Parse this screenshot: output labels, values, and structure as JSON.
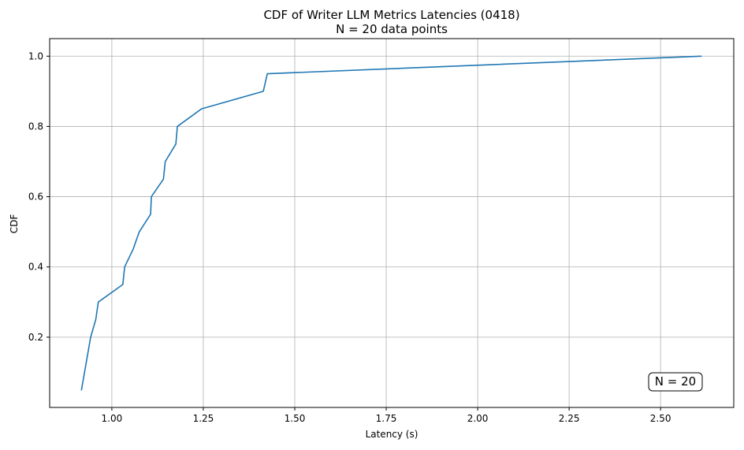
{
  "chart_data": {
    "type": "line",
    "title": "CDF of Writer LLM Metrics Latencies (0418)",
    "subtitle": "N = 20 data points",
    "xlabel": "Latency (s)",
    "ylabel": "CDF",
    "annotation": "N = 20",
    "xlim": [
      0.83,
      2.7
    ],
    "ylim": [
      0.0,
      1.05
    ],
    "xticks": [
      1.0,
      1.25,
      1.5,
      1.75,
      2.0,
      2.25,
      2.5
    ],
    "xtick_labels": [
      "1.00",
      "1.25",
      "1.50",
      "1.75",
      "2.00",
      "2.25",
      "2.50"
    ],
    "yticks": [
      0.2,
      0.4,
      0.6,
      0.8,
      1.0
    ],
    "ytick_labels": [
      "0.2",
      "0.4",
      "0.6",
      "0.8",
      "1.0"
    ],
    "grid": true,
    "legend": "none",
    "series": [
      {
        "color": "#1f77b4",
        "x": [
          0.917,
          0.942,
          0.956,
          0.963,
          1.03,
          1.035,
          1.058,
          1.075,
          1.106,
          1.108,
          1.141,
          1.146,
          1.175,
          1.179,
          1.245,
          1.414,
          1.425,
          2.611
        ],
        "y": [
          0.05,
          0.2,
          0.25,
          0.3,
          0.35,
          0.4,
          0.45,
          0.5,
          0.55,
          0.6,
          0.65,
          0.7,
          0.75,
          0.8,
          0.85,
          0.9,
          0.95,
          1.0
        ]
      }
    ]
  }
}
